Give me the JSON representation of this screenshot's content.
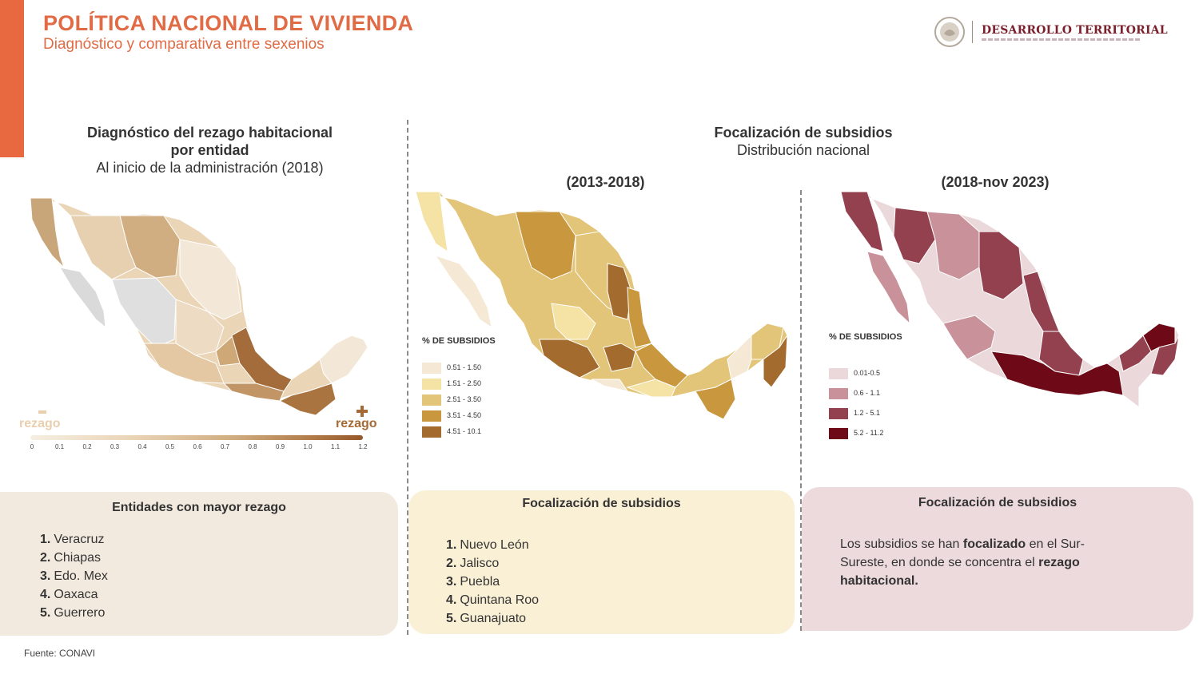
{
  "header": {
    "title": "POLÍTICA NACIONAL DE VIVIENDA",
    "subtitle": "Diagnóstico y comparativa entre sexenios",
    "logo_text": "DESARROLLO TERRITORIAL",
    "accent_color": "#E8683F"
  },
  "left_panel": {
    "title_line1": "Diagnóstico del rezago habitacional",
    "title_line2": "por entidad",
    "title_line3": "Al inicio de la administración (2018)",
    "scale_min_label": "rezago",
    "scale_max_label": "rezago",
    "scale_ticks": [
      "0",
      "0.1",
      "0.2",
      "0.3",
      "0.4",
      "0.5",
      "0.6",
      "0.7",
      "0.8",
      "0.9",
      "1.0",
      "1.1",
      "1.2"
    ],
    "colors": {
      "low": "#F6EEE2",
      "mid": "#D1AE82",
      "high": "#95582B"
    }
  },
  "middle_header": {
    "title": "Focalización de subsidios",
    "subtitle": "Distribución nacional"
  },
  "map_2013": {
    "period": "(2013-2018)",
    "legend_title": "% DE SUBSIDIOS",
    "legend": [
      {
        "label": "0.51 - 1.50",
        "color": "#F5E9D6"
      },
      {
        "label": "1.51 - 2.50",
        "color": "#F5E2A5"
      },
      {
        "label": "2.51 - 3.50",
        "color": "#E3C57A"
      },
      {
        "label": "3.51 - 4.50",
        "color": "#C9973D"
      },
      {
        "label": "4.51 - 10.1",
        "color": "#A36C2E"
      }
    ]
  },
  "map_2018": {
    "period": "(2018-nov 2023)",
    "legend_title": "% DE SUBSIDIOS",
    "legend": [
      {
        "label": "0.01-0.5",
        "color": "#EBD8DA"
      },
      {
        "label": "0.6 - 1.1",
        "color": "#C9929A"
      },
      {
        "label": "1.2 - 5.1",
        "color": "#93414F"
      },
      {
        "label": "5.2 - 11.2",
        "color": "#6E0A17"
      }
    ]
  },
  "box_rezago": {
    "title": "Entidades con mayor rezago",
    "items": [
      {
        "rank": "1.",
        "name": "Veracruz"
      },
      {
        "rank": "2.",
        "name": "Chiapas"
      },
      {
        "rank": "3.",
        "name": "Edo. Mex"
      },
      {
        "rank": "4.",
        "name": "Oaxaca"
      },
      {
        "rank": "5.",
        "name": "Guerrero"
      }
    ]
  },
  "box_focal_2013": {
    "title": "Focalización de subsidios",
    "items": [
      {
        "rank": "1.",
        "name": "Nuevo León"
      },
      {
        "rank": "2.",
        "name": "Jalisco"
      },
      {
        "rank": "3.",
        "name": "Puebla"
      },
      {
        "rank": "4.",
        "name": "Quintana Roo"
      },
      {
        "rank": "5.",
        "name": "Guanajuato"
      }
    ]
  },
  "box_focal_2018": {
    "title": "Focalización de subsidios",
    "text_part1": "Los subsidios se han",
    "text_bold1": "focalizado",
    "text_part2": "en el Sur-Sureste, en donde se concentra el",
    "text_bold2": "rezago habitacional."
  },
  "footer": {
    "source": "Fuente: CONAVI"
  }
}
